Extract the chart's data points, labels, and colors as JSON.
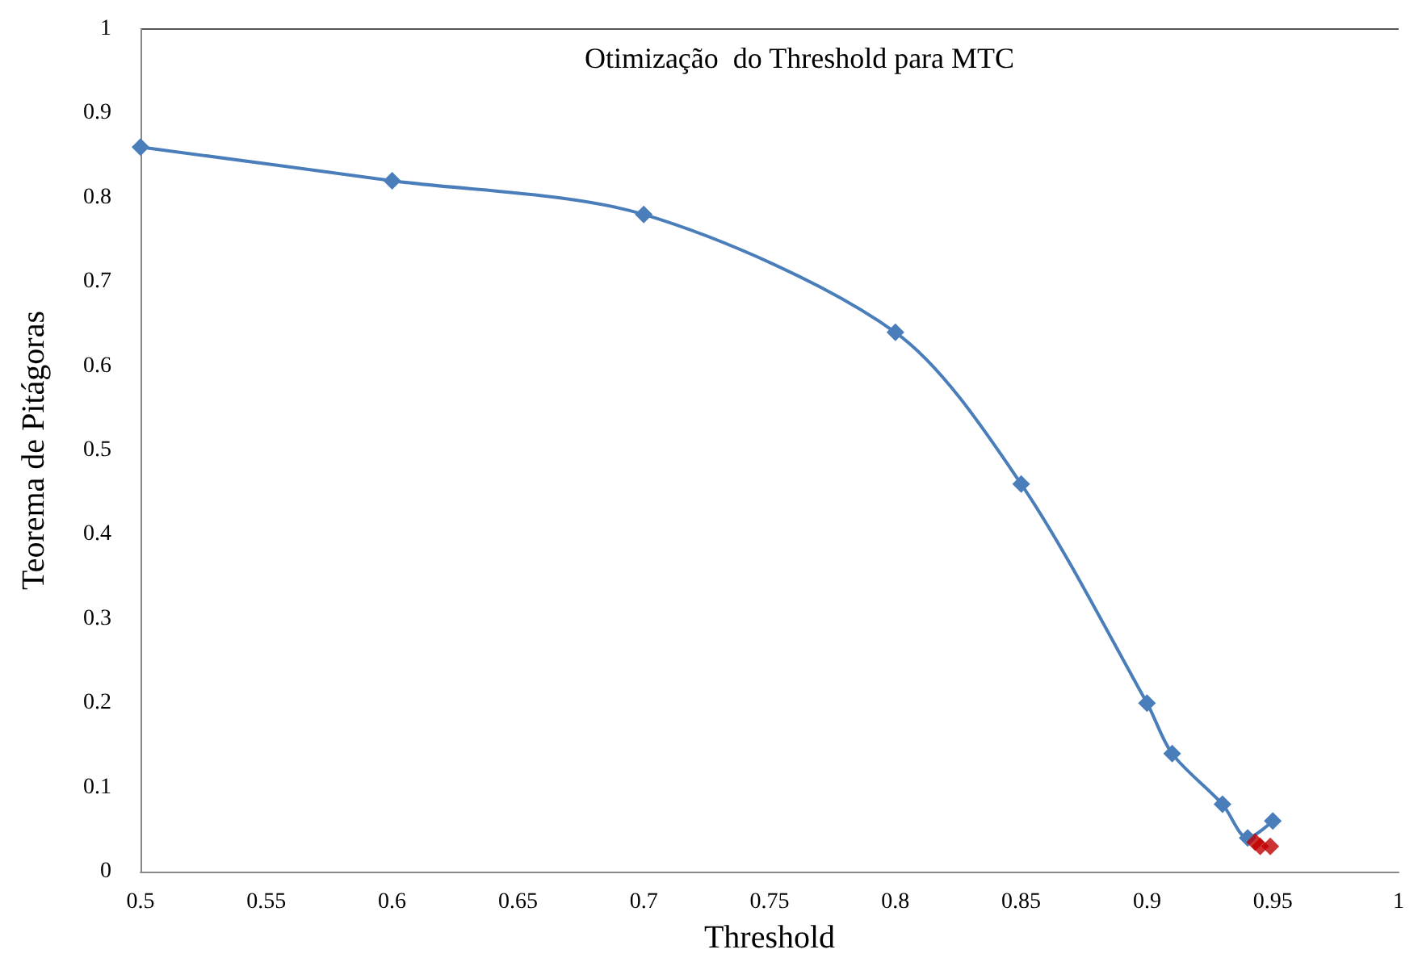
{
  "chart_data": {
    "type": "line",
    "title": "Otimização  do Threshold para MTC",
    "xlabel": "Threshold",
    "ylabel": "Teorema de Pitágoras",
    "series": [
      {
        "color": "#4a7ebb",
        "x": [
          0.5,
          0.6,
          0.7,
          0.8,
          0.85,
          0.9,
          0.91,
          0.93,
          0.94,
          0.945,
          0.95
        ],
        "values": [
          0.86,
          0.82,
          0.78,
          0.64,
          0.46,
          0.2,
          0.14,
          0.08,
          0.04,
          null,
          0.06
        ]
      },
      {
        "type": "scatter",
        "color": "#c00000",
        "x": [
          0.943,
          0.945,
          0.949
        ],
        "values": [
          0.035,
          0.03,
          0.03
        ]
      }
    ],
    "xlim": [
      0.5,
      1
    ],
    "xticks": [
      0.5,
      0.55,
      0.6,
      0.65,
      0.7,
      0.75,
      0.8,
      0.85,
      0.9,
      0.95,
      1
    ],
    "ylim": [
      0,
      1
    ],
    "yticks": [
      0,
      0.1,
      0.2,
      0.3,
      0.4,
      0.5,
      0.6,
      0.7,
      0.8,
      0.9,
      1
    ],
    "grid": false,
    "marker": "diamond",
    "line_style": "solid"
  }
}
